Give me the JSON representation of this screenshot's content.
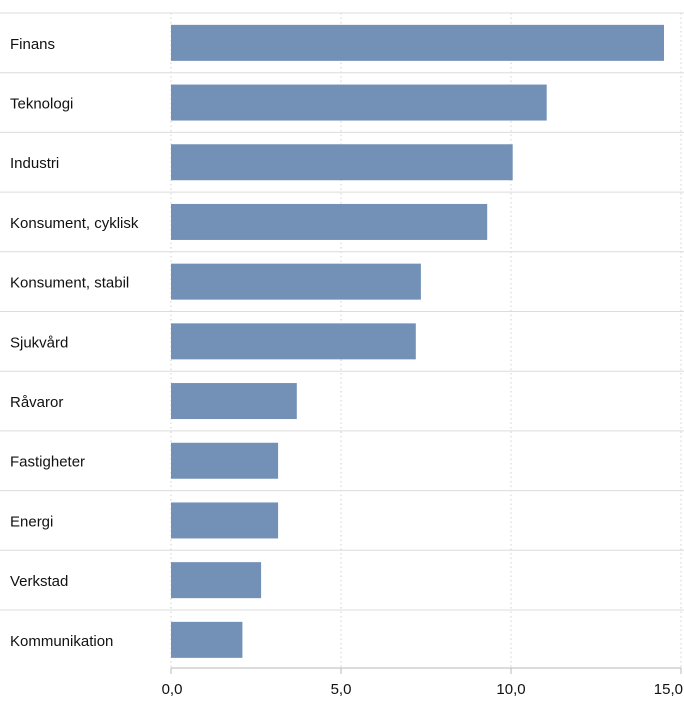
{
  "chart_data": {
    "type": "bar",
    "orientation": "horizontal",
    "categories": [
      "Finans",
      "Teknologi",
      "Industri",
      "Konsument, cyklisk",
      "Konsument, stabil",
      "Sjukvård",
      "Råvaror",
      "Fastigheter",
      "Energi",
      "Verkstad",
      "Kommunikation"
    ],
    "values": [
      14.5,
      11.05,
      10.05,
      9.3,
      7.35,
      7.2,
      3.7,
      3.15,
      3.15,
      2.65,
      2.1
    ],
    "xlim": [
      0,
      15
    ],
    "xticks": [
      0,
      5,
      10,
      15
    ],
    "xtick_labels": [
      "0,0",
      "5,0",
      "10,0",
      "15,0"
    ],
    "grid": true,
    "title": "",
    "xlabel": "",
    "ylabel": "",
    "bar_color": "#7391b7",
    "grid_color": "#d0d0d0",
    "separator_color": "#dcdcdc",
    "axis_color": "#b8b8b8"
  }
}
